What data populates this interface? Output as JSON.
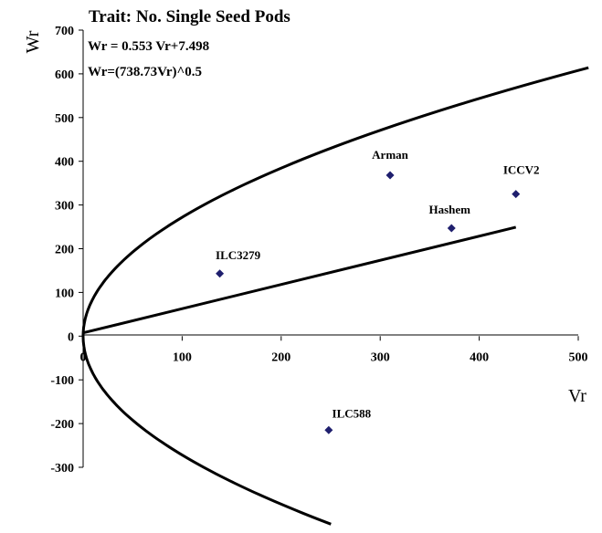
{
  "chart_data": {
    "type": "scatter",
    "title": "Trait: No. Single Seed Pods",
    "equations": [
      "Wr = 0.553 Vr+7.498",
      "Wr=(738.73Vr)^0.5"
    ],
    "xlabel": "Vr",
    "ylabel": "Wr",
    "xlim": [
      0,
      500
    ],
    "ylim": [
      -300,
      700
    ],
    "x_ticks": [
      "0",
      "100",
      "200",
      "300",
      "400",
      "500"
    ],
    "y_ticks": [
      "700",
      "600",
      "500",
      "400",
      "300",
      "200",
      "100",
      "0",
      "-100",
      "-200",
      "-300"
    ],
    "points": [
      {
        "label": "Arman",
        "x": 310,
        "y": 368
      },
      {
        "label": "ICCV2",
        "x": 437,
        "y": 325
      },
      {
        "label": "Hashem",
        "x": 372,
        "y": 247
      },
      {
        "label": "ILC3279",
        "x": 138,
        "y": 143
      },
      {
        "label": "ILC588",
        "x": 248,
        "y": -215
      }
    ],
    "regression": {
      "slope": 0.553,
      "intercept": 7.498,
      "x_range": [
        0,
        437
      ]
    },
    "parabola": {
      "coef": 738.73
    }
  },
  "colors": {
    "marker": "#1f1f6e",
    "line": "#000000"
  }
}
